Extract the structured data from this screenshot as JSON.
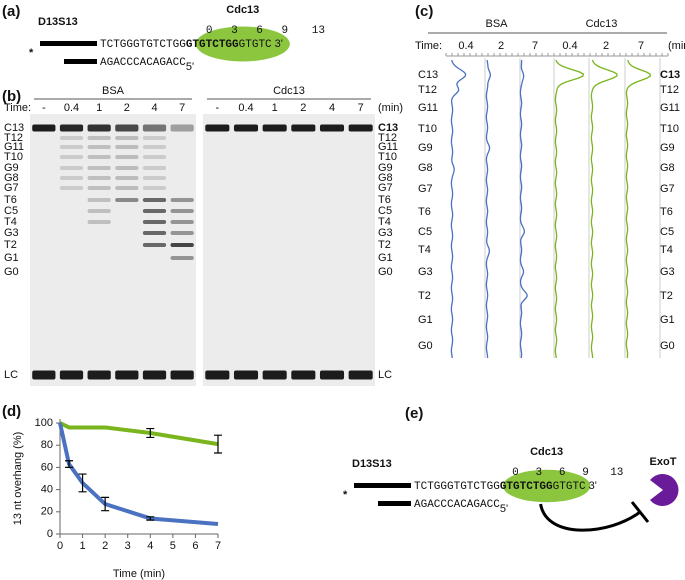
{
  "panels": {
    "a": {
      "label": "(a)",
      "construct": "D13S13",
      "asterisk": "*",
      "protein": "Cdc13",
      "positions": [
        0,
        3,
        6,
        9,
        13
      ],
      "top_strand": [
        "TCTGGGTGTCTGG",
        "GTGTCTGG",
        "GTGTC"
      ],
      "three_prime": "3'",
      "bottom_strand": "AGACCCACAGACC",
      "five_prime": "5'"
    },
    "b": {
      "label": "(b)",
      "time_label": "Time:",
      "unit": "(min)",
      "groups": [
        {
          "name": "BSA",
          "times": [
            "-",
            0.4,
            1,
            2,
            4,
            7
          ]
        },
        {
          "name": "Cdc13",
          "times": [
            "-",
            0.4,
            1,
            2,
            4,
            7
          ]
        }
      ],
      "bands": [
        "C13",
        "T12",
        "G11",
        "T10",
        "G9",
        "G8",
        "G7",
        "T6",
        "C5",
        "T4",
        "G3",
        "T2",
        "G1",
        "G0"
      ],
      "loading_control": "LC"
    },
    "c": {
      "label": "(c)",
      "time_label": "Time:",
      "unit": "(min)",
      "groups": [
        {
          "name": "BSA",
          "times": [
            0.4,
            2,
            7
          ]
        },
        {
          "name": "Cdc13",
          "times": [
            0.4,
            2,
            7
          ]
        }
      ],
      "positions": [
        "C13",
        "T12",
        "G11",
        "T10",
        "G9",
        "G8",
        "G7",
        "T6",
        "C5",
        "T4",
        "G3",
        "T2",
        "G1",
        "G0"
      ]
    },
    "e": {
      "label": "(e)",
      "construct": "D13S13",
      "asterisk": "*",
      "protein": "Cdc13",
      "positions": [
        0,
        3,
        6,
        9,
        13
      ],
      "top_strand": [
        "TCTGGGTGTCTGG",
        "GTGTCTGG",
        "GTGTC"
      ],
      "three_prime": "3'",
      "bottom_strand": "AGACCCACAGACC",
      "five_prime": "5'",
      "enzyme": "ExoT"
    }
  },
  "chart_data": {
    "type": "line",
    "label": "(d)",
    "xlabel": "Time (min)",
    "ylabel": "13 nt overhang (%)",
    "x": [
      0,
      0.4,
      1,
      2,
      4,
      7
    ],
    "xlim": [
      0,
      7
    ],
    "xticks": [
      0,
      1,
      2,
      3,
      4,
      5,
      6,
      7
    ],
    "ylim": [
      0,
      100
    ],
    "yticks": [
      0,
      20,
      40,
      60,
      80,
      100
    ],
    "series": [
      {
        "color": "#7ab51d",
        "values": [
          100,
          96,
          96,
          96,
          91,
          81
        ],
        "errors": [
          null,
          null,
          null,
          null,
          4,
          8
        ]
      },
      {
        "color": "#4a72c0",
        "values": [
          100,
          63,
          46,
          27,
          14,
          9
        ],
        "errors": [
          null,
          3,
          8,
          6,
          1.5,
          null
        ]
      }
    ]
  }
}
